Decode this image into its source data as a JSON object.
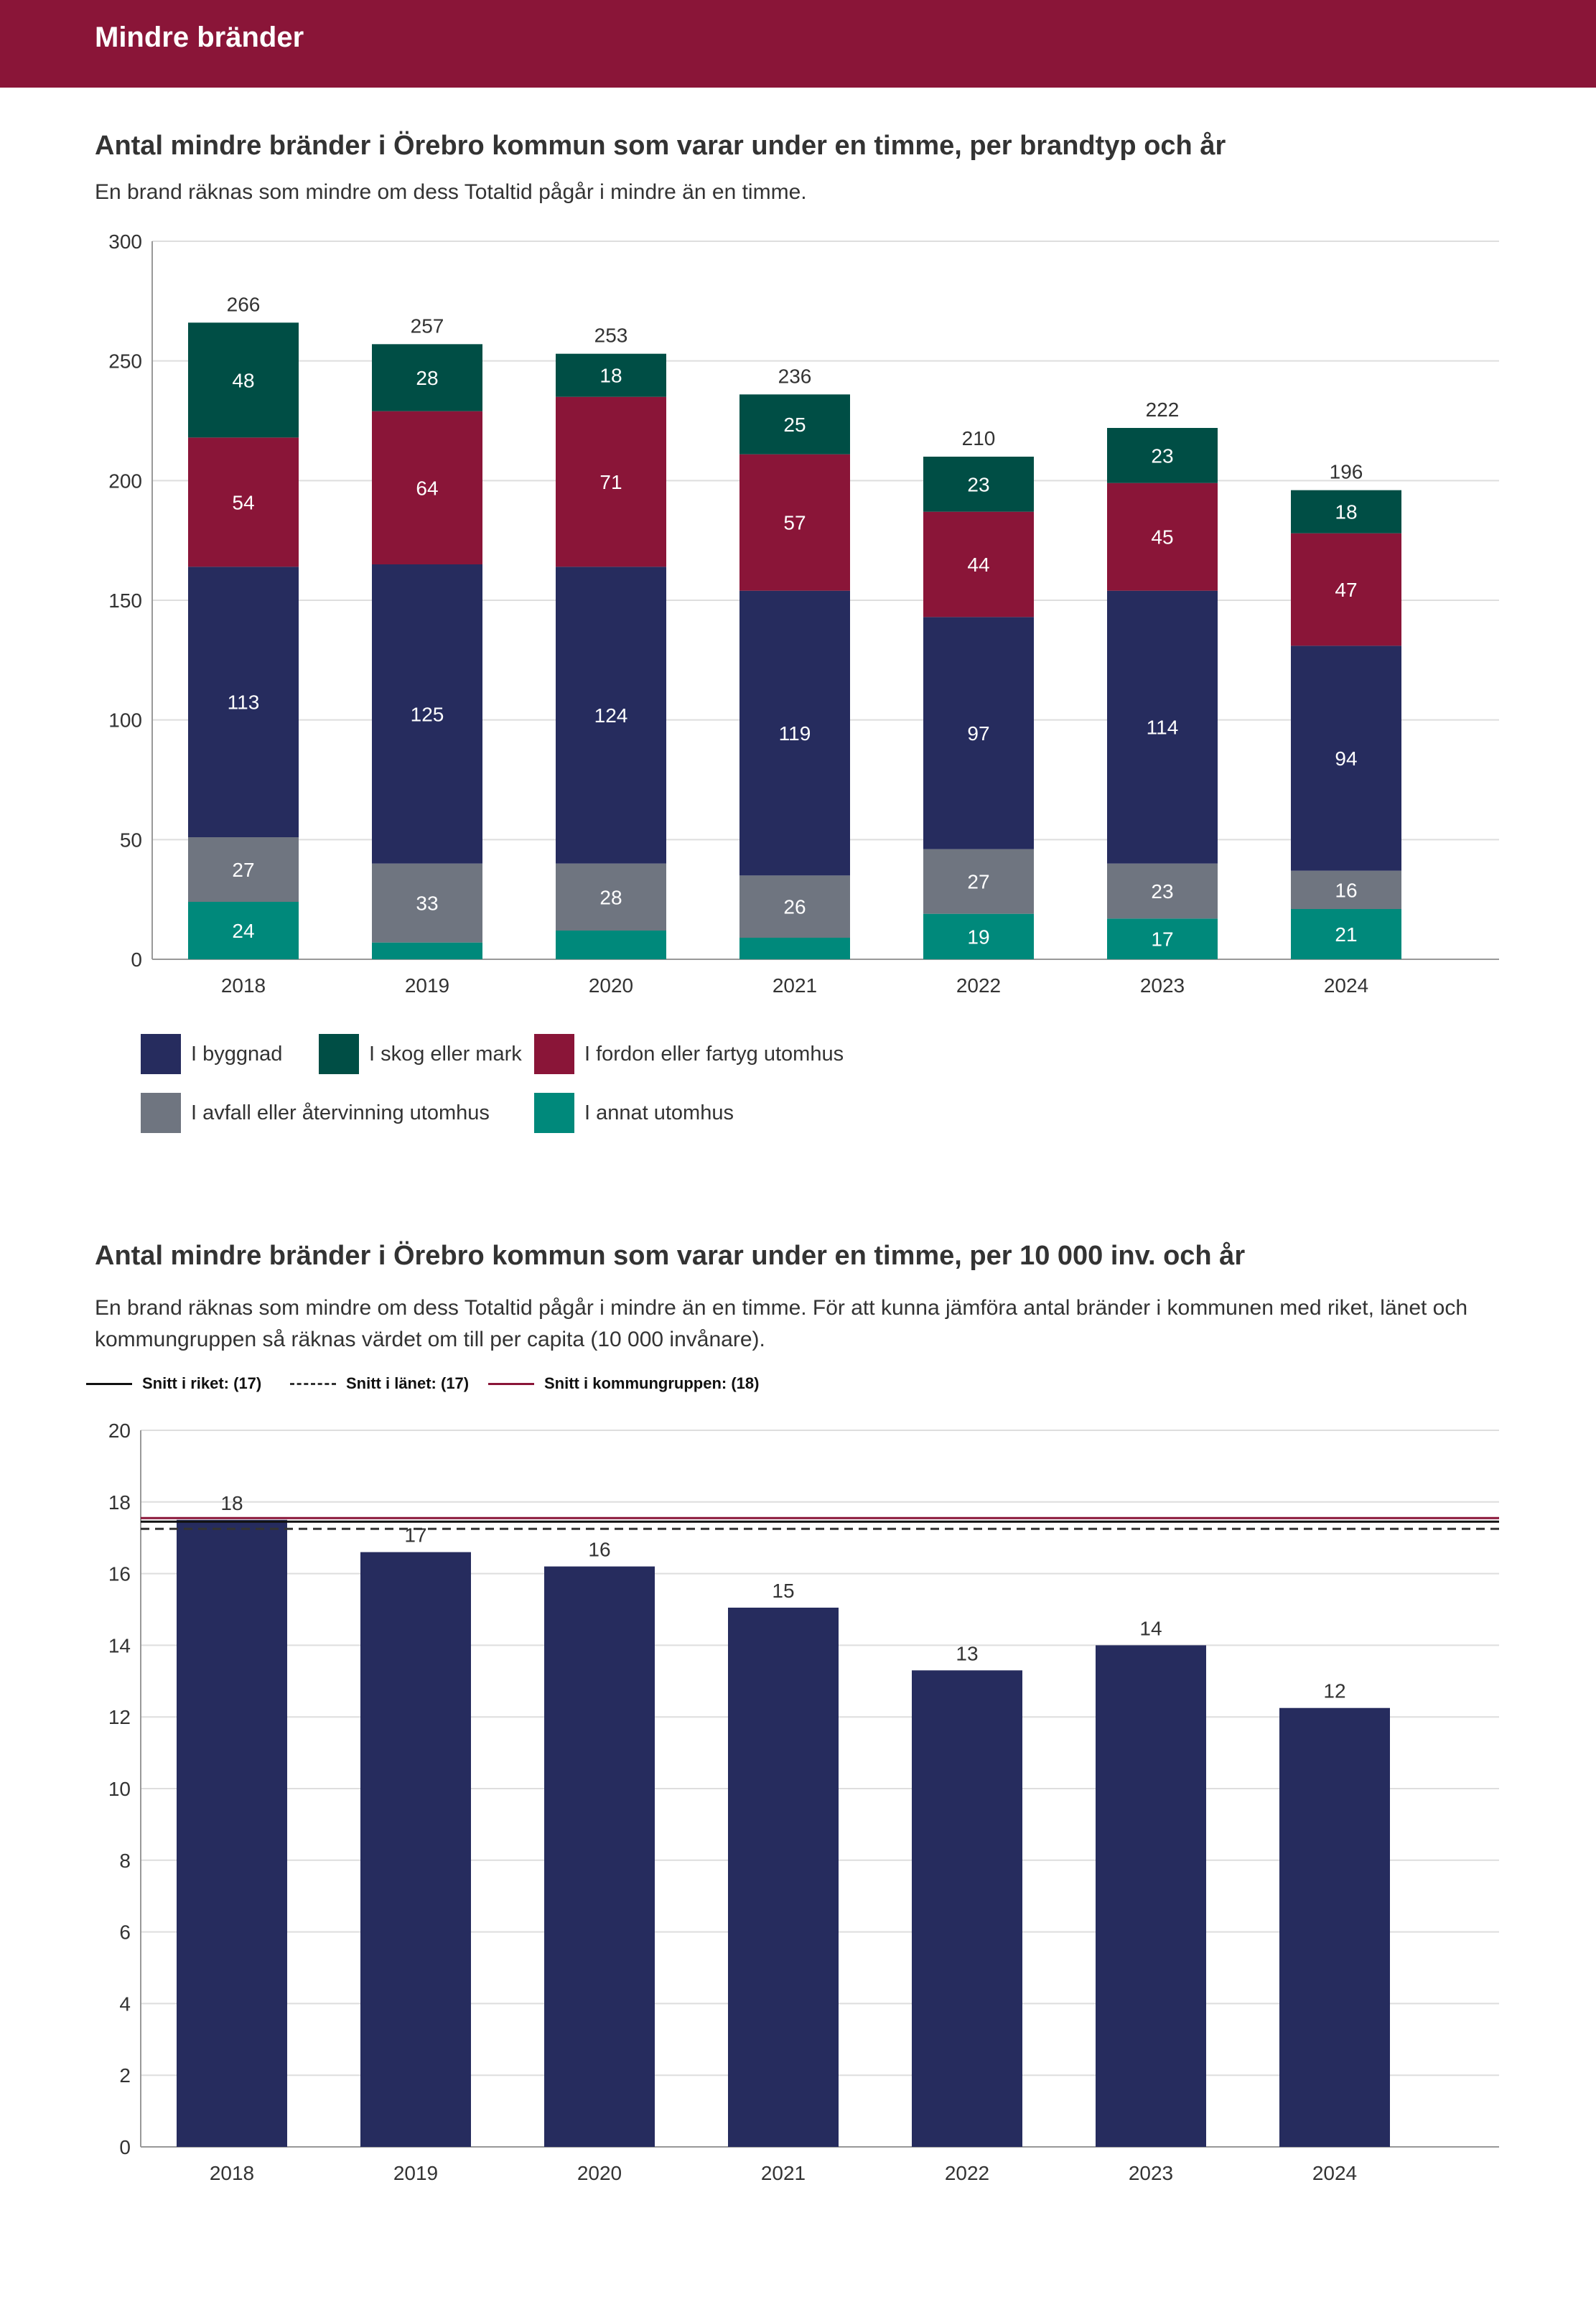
{
  "header": {
    "title": "Mindre bränder"
  },
  "chart1": {
    "title": "Antal mindre bränder i Örebro kommun som varar under en timme, per brandtyp och år",
    "subtitle": "En brand räknas som mindre om dess Totaltid pågår i mindre än en timme."
  },
  "chart2": {
    "title": "Antal mindre bränder i Örebro kommun som varar under en timme, per 10 000 inv. och år",
    "subtitle": "En brand räknas som mindre om dess Totaltid pågår i mindre än en timme. För att kunna jämföra antal bränder i kommunen med riket, länet och kommungruppen så räknas värdet om till per capita (10 000 invånare)."
  },
  "colors": {
    "banner": "#8a1538",
    "byggnad": "#262c5e",
    "skog": "#004e45",
    "fordon": "#8a1538",
    "avfall": "#6f7580",
    "annat": "#00897b"
  },
  "chart_data": [
    {
      "type": "bar",
      "stacked": true,
      "categories": [
        "2018",
        "2019",
        "2020",
        "2021",
        "2022",
        "2023",
        "2024"
      ],
      "series": [
        {
          "name": "I annat utomhus",
          "values": [
            24,
            7,
            12,
            9,
            19,
            17,
            21
          ],
          "color": "#00897b",
          "labels": [
            "24",
            "",
            "",
            "",
            "19",
            "17",
            "21"
          ]
        },
        {
          "name": "I avfall eller återvinning utomhus",
          "values": [
            27,
            33,
            28,
            26,
            27,
            23,
            16
          ],
          "color": "#6f7580",
          "labels": [
            "27",
            "33",
            "28",
            "26",
            "27",
            "23",
            "16"
          ]
        },
        {
          "name": "I byggnad",
          "values": [
            113,
            125,
            124,
            119,
            97,
            114,
            94
          ],
          "color": "#262c5e",
          "labels": [
            "113",
            "125",
            "124",
            "119",
            "97",
            "114",
            "94"
          ]
        },
        {
          "name": "I fordon eller fartyg utomhus",
          "values": [
            54,
            64,
            71,
            57,
            44,
            45,
            47
          ],
          "color": "#8a1538",
          "labels": [
            "54",
            "64",
            "71",
            "57",
            "44",
            "45",
            "47"
          ]
        },
        {
          "name": "I skog eller mark",
          "values": [
            48,
            28,
            18,
            25,
            23,
            23,
            18
          ],
          "color": "#004e45",
          "labels": [
            "48",
            "28",
            "18",
            "25",
            "23",
            "23",
            "18"
          ]
        }
      ],
      "totals": [
        "266",
        "257",
        "253",
        "236",
        "210",
        "222",
        "196"
      ],
      "yticks": [
        "0",
        "50",
        "100",
        "150",
        "200",
        "250",
        "300"
      ],
      "ylim": [
        0,
        300
      ],
      "grid": true,
      "legend": {
        "placement": "bottom",
        "rows": [
          [
            "I byggnad",
            "I skog eller mark",
            "I fordon eller fartyg utomhus"
          ],
          [
            "I avfall eller återvinning utomhus",
            "I annat utomhus"
          ]
        ]
      }
    },
    {
      "type": "bar",
      "categories": [
        "2018",
        "2019",
        "2020",
        "2021",
        "2022",
        "2023",
        "2024"
      ],
      "values": [
        17.5,
        16.6,
        16.2,
        15.05,
        13.3,
        14.0,
        12.25
      ],
      "labels": [
        "18",
        "17",
        "16",
        "15",
        "13",
        "14",
        "12"
      ],
      "color": "#262c5e",
      "yticks": [
        "0",
        "2",
        "4",
        "6",
        "8",
        "10",
        "12",
        "14",
        "16",
        "18",
        "20"
      ],
      "ylim": [
        0,
        20
      ],
      "grid": true,
      "reference_lines": [
        {
          "label": "Snitt i riket: (17)",
          "value": 17.45,
          "style": "solid",
          "color": "#111111"
        },
        {
          "label": "Snitt i länet: (17)",
          "value": 17.25,
          "style": "dashed",
          "color": "#333333"
        },
        {
          "label": "Snitt i kommungruppen: (18)",
          "value": 17.55,
          "style": "solid",
          "color": "#8a1538"
        }
      ],
      "legend": {
        "placement": "top-left"
      }
    }
  ]
}
